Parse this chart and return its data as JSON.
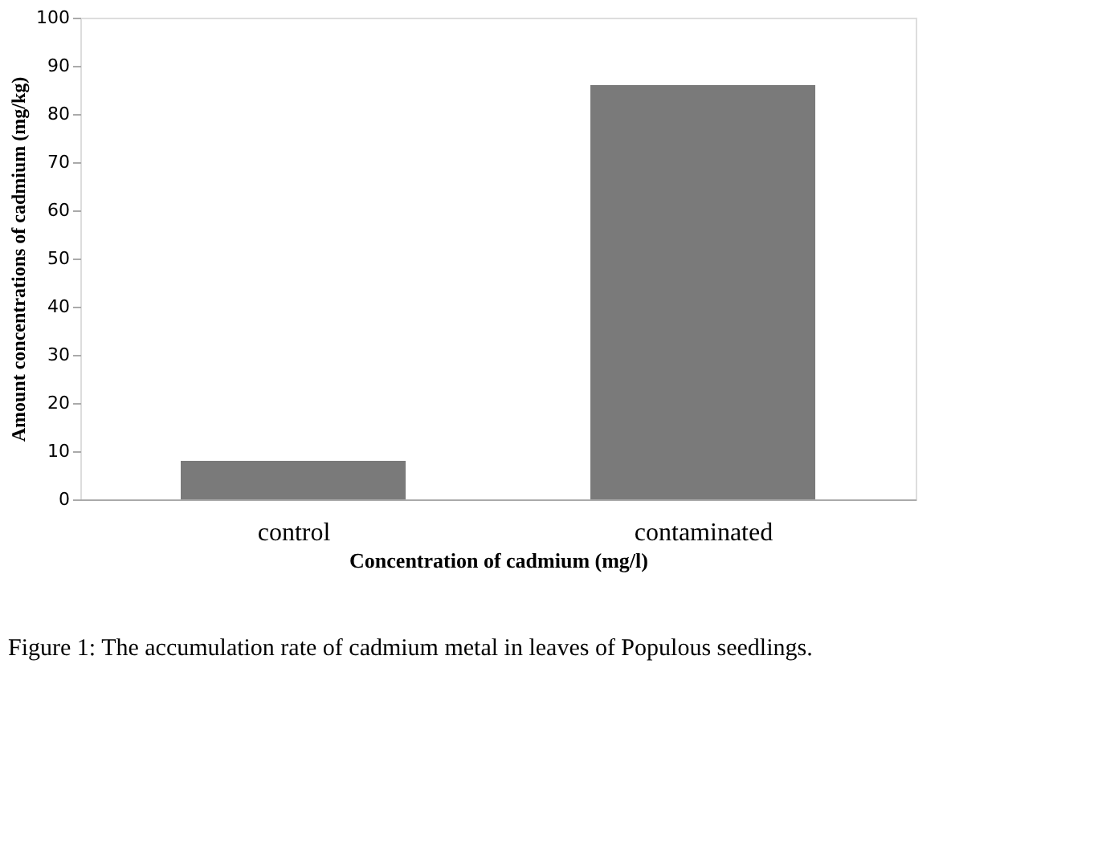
{
  "chart_data": {
    "type": "bar",
    "xlabel": "Concentration of cadmium (mg/l)",
    "ylabel": "Amount concentrations of cadmium (mg/kg)",
    "categories": [
      "control",
      "contaminated"
    ],
    "values": [
      8,
      86
    ],
    "color": "#7a7a7a",
    "ylim": [
      0,
      100
    ],
    "yticks": [
      0,
      10,
      20,
      30,
      40,
      50,
      60,
      70,
      80,
      90,
      100
    ],
    "grid": false,
    "annotations": [
      "Figure 1: The accumulation rate of cadmium metal in leaves of Populous seedlings."
    ]
  }
}
